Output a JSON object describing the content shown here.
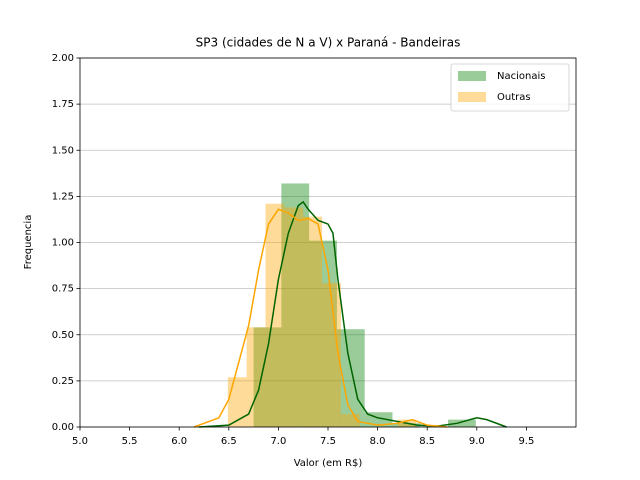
{
  "chart_data": {
    "type": "histogram",
    "title": "SP3 (cidades de N a V) x Paraná - Bandeiras",
    "x_label": "Valor (em R$)",
    "y_label": "Frequencia",
    "xlim": [
      5,
      10
    ],
    "ylim": [
      0,
      2
    ],
    "xticks": [
      {
        "value": 5,
        "label": "5.0"
      },
      {
        "value": 5.5,
        "label": "5.5"
      },
      {
        "value": 6,
        "label": "6.0"
      },
      {
        "value": 6.5,
        "label": "6.5"
      },
      {
        "value": 7,
        "label": "7.0"
      },
      {
        "value": 7.5,
        "label": "7.5"
      },
      {
        "value": 8,
        "label": "8.0"
      },
      {
        "value": 8.5,
        "label": "8.5"
      },
      {
        "value": 9,
        "label": "9.0"
      },
      {
        "value": 9.5,
        "label": "9.5"
      }
    ],
    "yticks": [
      {
        "value": 0,
        "label": "0.00"
      },
      {
        "value": 0.25,
        "label": "0.25"
      },
      {
        "value": 0.5,
        "label": "0.50"
      },
      {
        "value": 0.75,
        "label": "0.75"
      },
      {
        "value": 1,
        "label": "1.00"
      },
      {
        "value": 1.25,
        "label": "1.25"
      },
      {
        "value": 1.5,
        "label": "1.50"
      },
      {
        "value": 1.75,
        "label": "1.75"
      },
      {
        "value": 2,
        "label": "2.00"
      }
    ],
    "grid": "y",
    "legend": "upper right",
    "alpha": 0.4,
    "series": [
      {
        "name": "Nacionais",
        "color": "green",
        "kde_color": "darkgreen",
        "bins": [
          6.75,
          7.03,
          7.31,
          7.59,
          7.87,
          8.15,
          8.43,
          8.71,
          8.99
        ],
        "values": [
          0.54,
          1.32,
          1.01,
          0.53,
          0.08,
          0.02,
          0,
          0.04
        ],
        "kde_x": [
          6.2,
          6.5,
          6.7,
          6.8,
          6.9,
          7.0,
          7.1,
          7.2,
          7.25,
          7.3,
          7.4,
          7.5,
          7.55,
          7.6,
          7.7,
          7.8,
          7.9,
          8.0,
          8.2,
          8.4,
          8.6,
          8.8,
          9.0,
          9.1,
          9.3
        ],
        "kde_values": [
          0,
          0.01,
          0.07,
          0.2,
          0.45,
          0.8,
          1.05,
          1.2,
          1.22,
          1.18,
          1.12,
          1.1,
          1.05,
          0.8,
          0.4,
          0.15,
          0.07,
          0.05,
          0.03,
          0.01,
          0.005,
          0.02,
          0.05,
          0.04,
          0
        ]
      },
      {
        "name": "Outras",
        "color": "orange",
        "kde_color": "orange",
        "bins": [
          6.49,
          6.68,
          6.87,
          7.06,
          7.25,
          7.44,
          7.63,
          7.82,
          8.01,
          8.2,
          8.39
        ],
        "values": [
          0.27,
          0.54,
          1.21,
          1.19,
          1.14,
          0.78,
          0.07,
          0,
          0,
          0.04
        ],
        "kde_x": [
          6.15,
          6.4,
          6.5,
          6.6,
          6.7,
          6.8,
          6.9,
          7.0,
          7.1,
          7.2,
          7.3,
          7.4,
          7.5,
          7.6,
          7.7,
          7.8,
          8.0,
          8.2,
          8.35,
          8.5,
          8.7
        ],
        "kde_values": [
          0,
          0.05,
          0.15,
          0.35,
          0.55,
          0.85,
          1.1,
          1.18,
          1.16,
          1.12,
          1.13,
          1.1,
          0.85,
          0.4,
          0.12,
          0.03,
          0.01,
          0.02,
          0.04,
          0.01,
          0
        ]
      }
    ]
  }
}
